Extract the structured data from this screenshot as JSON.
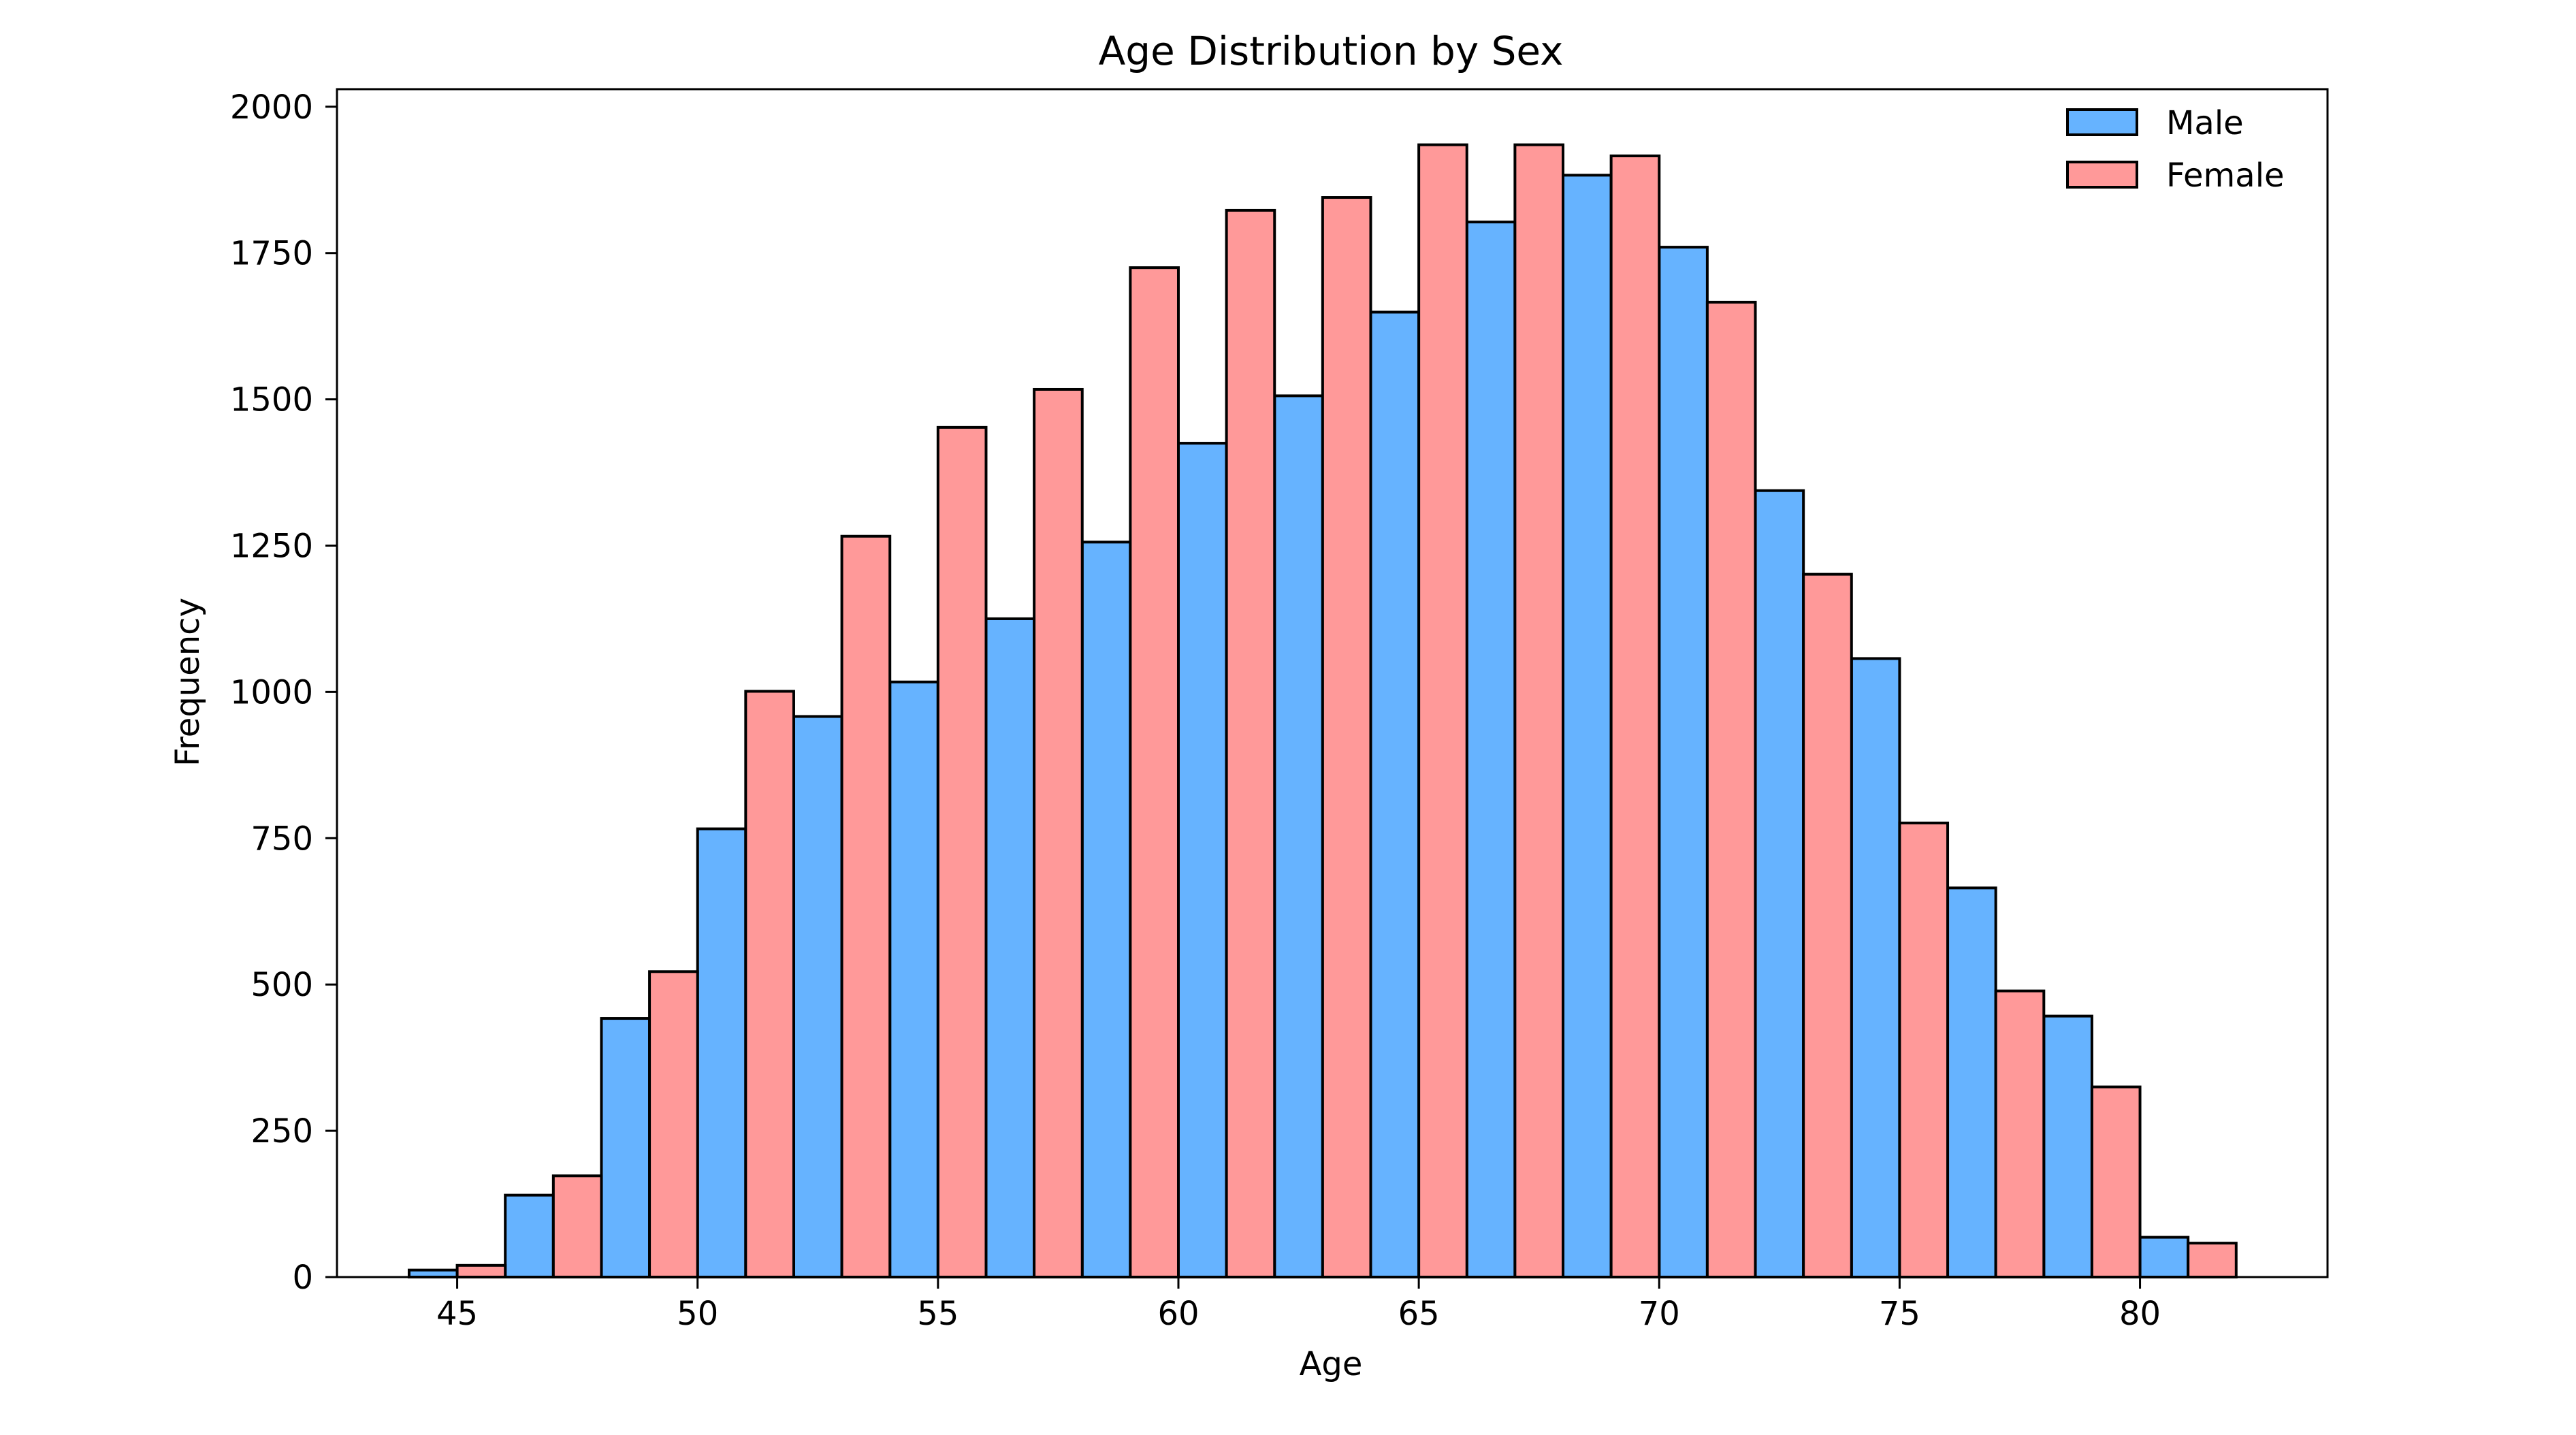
{
  "chart_data": {
    "type": "bar",
    "title": "Age Distribution by Sex",
    "xlabel": "Age",
    "ylabel": "Frequency",
    "xlim": [
      42.5,
      83.9
    ],
    "ylim": [
      0,
      2030
    ],
    "x_ticks": [
      45,
      50,
      55,
      60,
      65,
      70,
      75,
      80
    ],
    "y_ticks": [
      0,
      250,
      500,
      750,
      1000,
      1250,
      1500,
      1750,
      2000
    ],
    "bin_starts": [
      44,
      46,
      48,
      50,
      52,
      54,
      56,
      58,
      60,
      62,
      64,
      66,
      68,
      70,
      72,
      74,
      76,
      78,
      80
    ],
    "bin_width": 2,
    "grid": false,
    "legend_position": "top-right",
    "series": [
      {
        "name": "Male",
        "color": "#66b3ff",
        "values": [
          12,
          140,
          442,
          766,
          958,
          1017,
          1125,
          1256,
          1425,
          1506,
          1649,
          1803,
          1883,
          1760,
          1344,
          1057,
          665,
          446,
          68
        ]
      },
      {
        "name": "Female",
        "color": "#ff9999",
        "values": [
          20,
          173,
          522,
          1001,
          1266,
          1452,
          1517,
          1725,
          1823,
          1845,
          1935,
          1935,
          1916,
          1666,
          1201,
          776,
          489,
          325,
          58
        ]
      }
    ]
  }
}
